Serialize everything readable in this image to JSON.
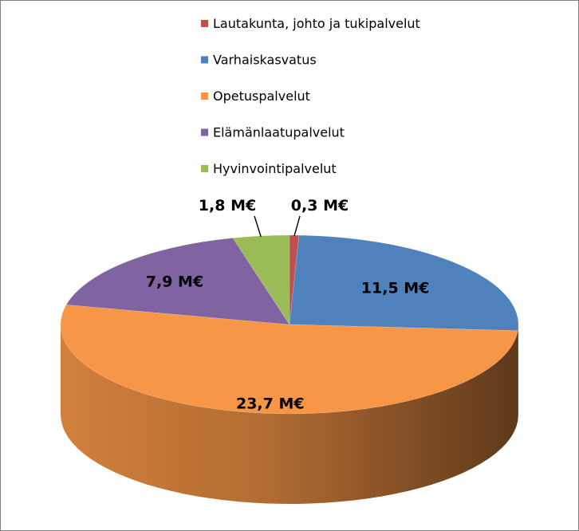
{
  "chart_data": {
    "type": "pie",
    "title": "",
    "categories": [
      "Lautakunta, johto ja tukipalvelut",
      "Varhaiskasvatus",
      "Opetuspalvelut",
      "Elämänlaatupalvelut",
      "Hyvinvointipalvelut"
    ],
    "values": [
      0.3,
      11.5,
      23.7,
      7.9,
      1.8
    ],
    "value_labels": [
      "0,3 M€",
      "11,5 M€",
      "23,7 M€",
      "7,9 M€",
      "1,8 M€"
    ],
    "colors": [
      "#c0504d",
      "#4f81bd",
      "#f79646",
      "#8064a2",
      "#9bbb59"
    ],
    "legend_position": "top",
    "style": "3d"
  }
}
